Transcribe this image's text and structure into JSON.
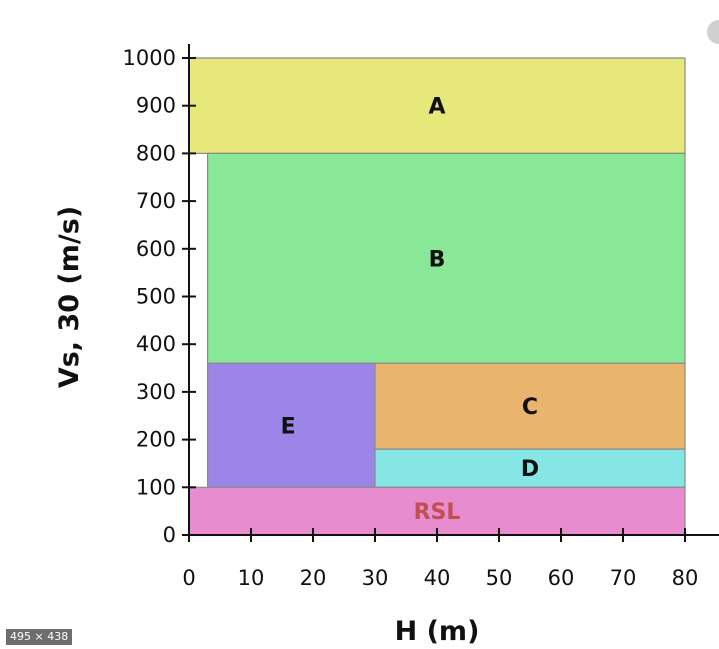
{
  "chart_data": {
    "type": "area",
    "title": "",
    "xlabel": "H (m)",
    "ylabel": "Vs, 30 (m/s)",
    "xlim": [
      0,
      80
    ],
    "ylim": [
      0,
      1000
    ],
    "xticks": [
      0,
      10,
      20,
      30,
      40,
      50,
      60,
      70,
      80
    ],
    "yticks": [
      0,
      100,
      200,
      300,
      400,
      500,
      600,
      700,
      800,
      900,
      1000
    ],
    "grid": false,
    "zones": [
      {
        "name": "A",
        "x": [
          0,
          80
        ],
        "y": [
          800,
          1000
        ],
        "color": "#e6e87a"
      },
      {
        "name": "B",
        "x": [
          3,
          80
        ],
        "y": [
          360,
          800
        ],
        "color": "#88e898"
      },
      {
        "name": "E",
        "x": [
          3,
          30
        ],
        "y": [
          100,
          360
        ],
        "color": "#9b86e8"
      },
      {
        "name": "C",
        "x": [
          30,
          80
        ],
        "y": [
          180,
          360
        ],
        "color": "#e8b46e"
      },
      {
        "name": "D",
        "x": [
          30,
          80
        ],
        "y": [
          100,
          180
        ],
        "color": "#86e6e6"
      },
      {
        "name": "RSL",
        "x": [
          0,
          80
        ],
        "y": [
          0,
          100
        ],
        "color": "#e88cd0",
        "label_color": "#c0504d"
      }
    ],
    "labels": [
      {
        "text": "A",
        "x": 40,
        "y": 900
      },
      {
        "text": "B",
        "x": 40,
        "y": 580
      },
      {
        "text": "E",
        "x": 16,
        "y": 230
      },
      {
        "text": "C",
        "x": 55,
        "y": 270
      },
      {
        "text": "D",
        "x": 55,
        "y": 140
      },
      {
        "text": "RSL",
        "x": 40,
        "y": 50
      }
    ]
  },
  "badge": "495 × 438"
}
